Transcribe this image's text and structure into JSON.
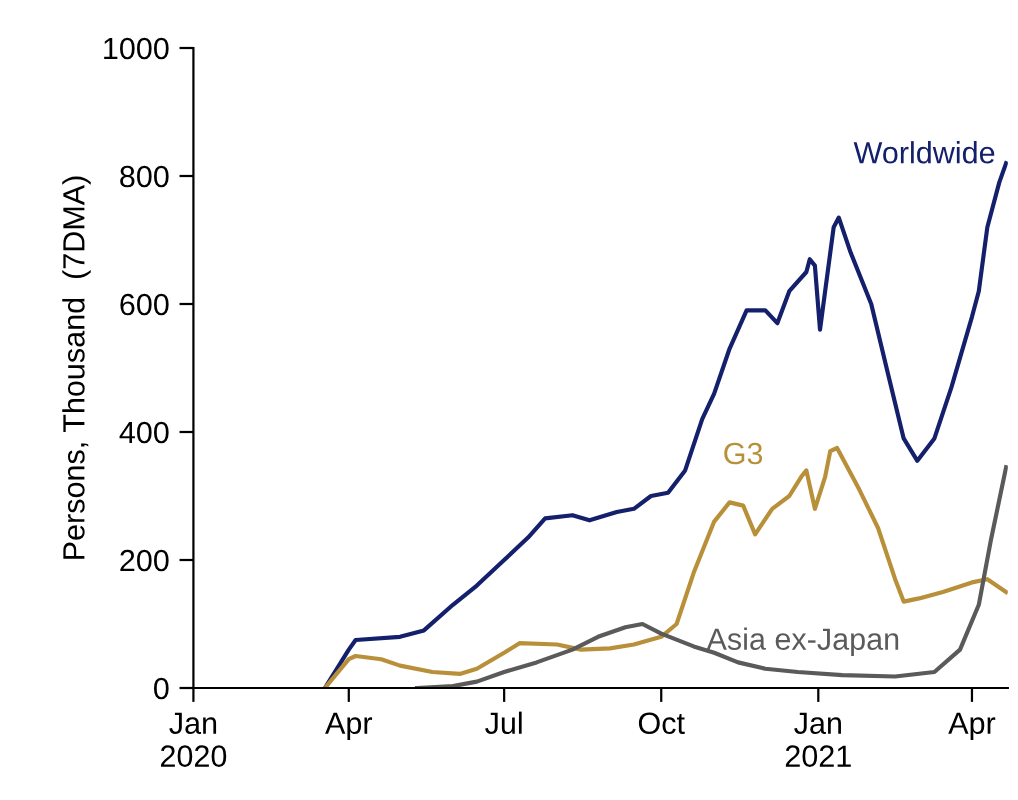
{
  "chart_data": {
    "type": "line",
    "ylabel": "Persons, Thousand  (7DMA)",
    "xlim": [
      "2020-01-01",
      "2021-04-22"
    ],
    "xticks": [
      {
        "value": "2020-01-01",
        "label": "Jan\n2020"
      },
      {
        "value": "2020-04-01",
        "label": "Apr"
      },
      {
        "value": "2020-07-01",
        "label": "Jul"
      },
      {
        "value": "2020-10-01",
        "label": "Oct"
      },
      {
        "value": "2021-01-01",
        "label": "Jan\n2021"
      },
      {
        "value": "2021-04-01",
        "label": "Apr"
      }
    ],
    "ylim": [
      0,
      1000
    ],
    "yticks": [
      0,
      200,
      400,
      600,
      800,
      1000
    ],
    "grid": false,
    "legend": false,
    "series": [
      {
        "name": "Worldwide",
        "color": "#14206b",
        "x": [
          "2020-03-18",
          "2020-04-01",
          "2020-04-05",
          "2020-05-01",
          "2020-05-15",
          "2020-06-01",
          "2020-06-15",
          "2020-07-01",
          "2020-07-15",
          "2020-07-25",
          "2020-08-10",
          "2020-08-20",
          "2020-09-05",
          "2020-09-15",
          "2020-09-25",
          "2020-10-05",
          "2020-10-15",
          "2020-10-25",
          "2020-11-01",
          "2020-11-10",
          "2020-11-20",
          "2020-12-01",
          "2020-12-08",
          "2020-12-15",
          "2020-12-25",
          "2020-12-27",
          "2020-12-30",
          "2021-01-02",
          "2021-01-05",
          "2021-01-10",
          "2021-01-13",
          "2021-01-20",
          "2021-02-01",
          "2021-02-10",
          "2021-02-20",
          "2021-02-28",
          "2021-03-10",
          "2021-03-20",
          "2021-04-01",
          "2021-04-05",
          "2021-04-10",
          "2021-04-17",
          "2021-04-21"
        ],
        "values": [
          0,
          60,
          75,
          80,
          90,
          130,
          160,
          200,
          235,
          265,
          270,
          262,
          275,
          280,
          300,
          305,
          340,
          420,
          460,
          530,
          590,
          590,
          570,
          620,
          650,
          670,
          660,
          560,
          620,
          720,
          735,
          680,
          600,
          500,
          390,
          355,
          390,
          470,
          580,
          620,
          720,
          790,
          820
        ]
      },
      {
        "name": "G3",
        "color": "#b8903a",
        "x": [
          "2020-03-18",
          "2020-04-01",
          "2020-04-05",
          "2020-04-20",
          "2020-05-01",
          "2020-05-20",
          "2020-06-05",
          "2020-06-15",
          "2020-07-01",
          "2020-07-10",
          "2020-08-01",
          "2020-08-15",
          "2020-09-01",
          "2020-09-15",
          "2020-10-01",
          "2020-10-10",
          "2020-10-20",
          "2020-11-01",
          "2020-11-10",
          "2020-11-18",
          "2020-11-25",
          "2020-12-05",
          "2020-12-15",
          "2020-12-22",
          "2020-12-25",
          "2020-12-30",
          "2021-01-05",
          "2021-01-08",
          "2021-01-12",
          "2021-01-25",
          "2021-02-05",
          "2021-02-15",
          "2021-02-20",
          "2021-03-01",
          "2021-03-15",
          "2021-04-01",
          "2021-04-10",
          "2021-04-21"
        ],
        "values": [
          0,
          45,
          50,
          45,
          35,
          25,
          22,
          30,
          55,
          70,
          68,
          60,
          62,
          68,
          80,
          100,
          180,
          260,
          290,
          285,
          240,
          280,
          300,
          330,
          340,
          280,
          330,
          370,
          375,
          310,
          250,
          170,
          135,
          140,
          150,
          165,
          170,
          150
        ]
      },
      {
        "name": "Asia ex-Japan",
        "color": "#5a5a5a",
        "x": [
          "2020-05-11",
          "2020-06-01",
          "2020-06-15",
          "2020-07-01",
          "2020-07-20",
          "2020-08-10",
          "2020-08-25",
          "2020-09-10",
          "2020-09-20",
          "2020-10-01",
          "2020-10-20",
          "2020-11-01",
          "2020-11-15",
          "2020-12-01",
          "2020-12-20",
          "2021-01-15",
          "2021-02-15",
          "2021-03-10",
          "2021-03-25",
          "2021-04-05",
          "2021-04-12",
          "2021-04-21"
        ],
        "values": [
          0,
          3,
          10,
          25,
          40,
          60,
          80,
          95,
          100,
          85,
          65,
          55,
          40,
          30,
          25,
          20,
          18,
          25,
          60,
          130,
          230,
          345
        ]
      }
    ]
  }
}
